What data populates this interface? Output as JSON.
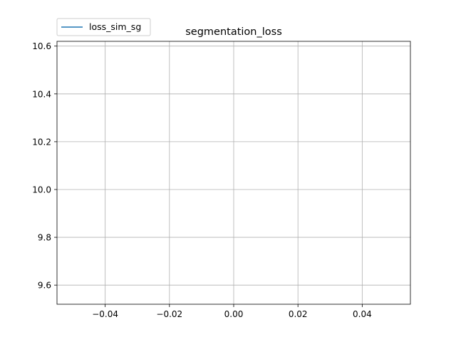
{
  "chart_data": {
    "type": "line",
    "title": "segmentation_loss",
    "xlabel": "",
    "ylabel": "",
    "xlim": [
      -0.055,
      0.055
    ],
    "ylim": [
      9.52,
      10.62
    ],
    "xticks": [
      -0.04,
      -0.02,
      0.0,
      0.02,
      0.04
    ],
    "xtick_labels": [
      "−0.04",
      "−0.02",
      "0.00",
      "0.02",
      "0.04"
    ],
    "yticks": [
      9.6,
      9.8,
      10.0,
      10.2,
      10.4,
      10.6
    ],
    "ytick_labels": [
      "9.6",
      "9.8",
      "10.0",
      "10.2",
      "10.4",
      "10.6"
    ],
    "grid": true,
    "legend": "top-left, outside plot area",
    "series": [
      {
        "name": "loss_sim_sg",
        "color": "#1f77b4",
        "x": [],
        "y": []
      }
    ]
  }
}
